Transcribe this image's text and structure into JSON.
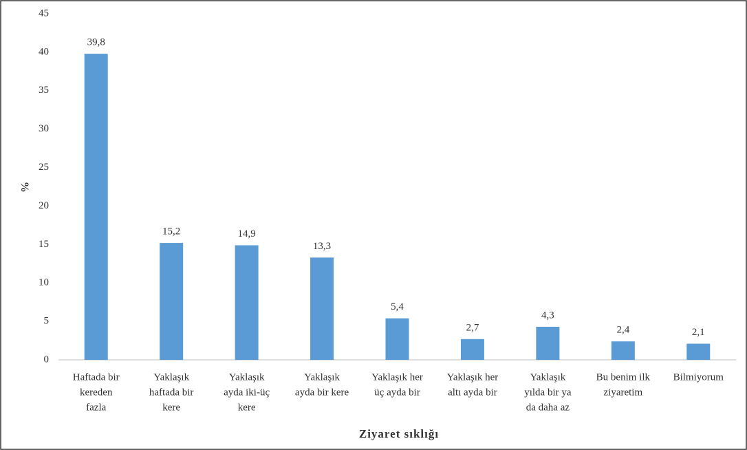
{
  "chart_data": {
    "type": "bar",
    "x_label": "Ziyaret sıklığı",
    "y_label": "%",
    "categories": [
      [
        "Haftada bir",
        "kereden",
        "fazla"
      ],
      [
        "Yaklaşık",
        "haftada bir",
        "kere"
      ],
      [
        "Yaklaşık",
        "ayda iki-üç",
        "kere"
      ],
      [
        "Yaklaşık",
        "ayda bir kere"
      ],
      [
        "Yaklaşık her",
        "üç ayda bir"
      ],
      [
        "Yaklaşık her",
        "altı ayda bir"
      ],
      [
        "Yaklaşık",
        "yılda bir ya",
        "da daha az"
      ],
      [
        "Bu benim ilk",
        "ziyaretim"
      ],
      [
        "Bilmiyorum"
      ]
    ],
    "values": [
      39.8,
      15.2,
      14.9,
      13.3,
      5.4,
      2.7,
      4.3,
      2.4,
      2.1
    ],
    "value_labels": [
      "39,8",
      "15,2",
      "14,9",
      "13,3",
      "5,4",
      "2,7",
      "4,3",
      "2,4",
      "2,1"
    ],
    "color": "#5b9bd5",
    "ylim": [
      0,
      45
    ],
    "yticks": [
      0,
      5,
      10,
      15,
      20,
      25,
      30,
      35,
      40,
      45
    ],
    "grid": false
  }
}
